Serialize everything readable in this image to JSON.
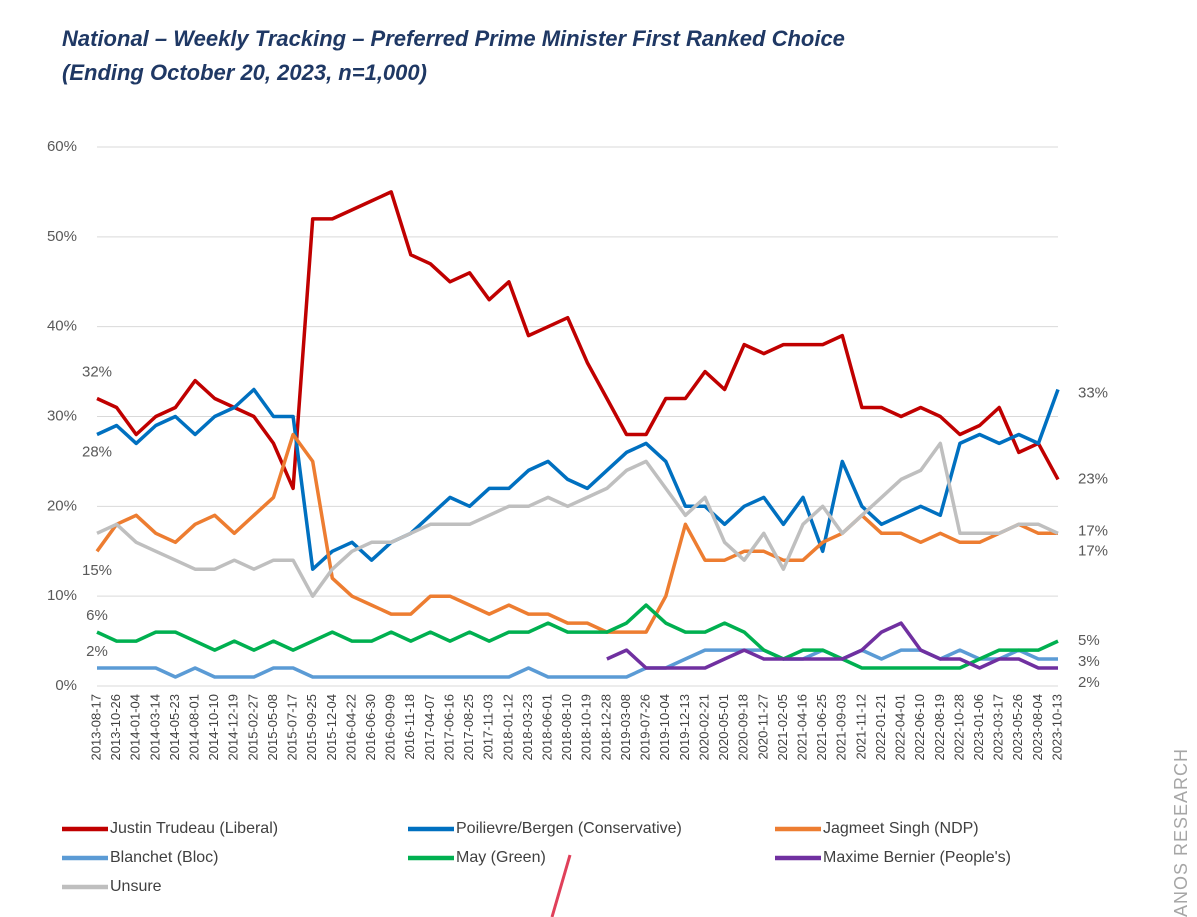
{
  "chart_data": {
    "type": "line",
    "title": "National – Weekly Tracking – Preferred Prime Minister First Ranked Choice",
    "subtitle": "(Ending October 20, 2023, n=1,000)",
    "watermark": "ANOS RESEARCH",
    "categories": [
      "2013-08-17",
      "2013-10-26",
      "2014-01-04",
      "2014-03-14",
      "2014-05-23",
      "2014-08-01",
      "2014-10-10",
      "2014-12-19",
      "2015-02-27",
      "2015-05-08",
      "2015-07-17",
      "2015-09-25",
      "2015-12-04",
      "2016-04-22",
      "2016-06-30",
      "2016-09-09",
      "2016-11-18",
      "2017-04-07",
      "2017-06-16",
      "2017-08-25",
      "2017-11-03",
      "2018-01-12",
      "2018-03-23",
      "2018-06-01",
      "2018-08-10",
      "2018-10-19",
      "2018-12-28",
      "2019-03-08",
      "2019-07-26",
      "2019-10-04",
      "2019-12-13",
      "2020-02-21",
      "2020-05-01",
      "2020-09-18",
      "2020-11-27",
      "2021-02-05",
      "2021-04-16",
      "2021-06-25",
      "2021-09-03",
      "2021-11-12",
      "2022-01-21",
      "2022-04-01",
      "2022-06-10",
      "2022-08-19",
      "2022-10-28",
      "2023-01-06",
      "2023-03-17",
      "2023-05-26",
      "2023-08-04",
      "2023-10-13"
    ],
    "ylim": [
      0,
      60
    ],
    "yticks": [
      {
        "value": 0,
        "label": "0%"
      },
      {
        "value": 10,
        "label": "10%"
      },
      {
        "value": 20,
        "label": "20%"
      },
      {
        "value": 30,
        "label": "30%"
      },
      {
        "value": 40,
        "label": "40%"
      },
      {
        "value": 50,
        "label": "50%"
      },
      {
        "value": 60,
        "label": "60%"
      }
    ],
    "grid": true,
    "series": [
      {
        "name": "Justin Trudeau (Liberal)",
        "color": "#c00000",
        "values": [
          32,
          31,
          28,
          30,
          31,
          34,
          32,
          31,
          30,
          27,
          22,
          52,
          52,
          53,
          54,
          55,
          48,
          47,
          45,
          46,
          43,
          45,
          39,
          40,
          41,
          36,
          32,
          28,
          28,
          32,
          32,
          35,
          33,
          38,
          37,
          38,
          38,
          38,
          39,
          31,
          31,
          30,
          31,
          30,
          28,
          29,
          31,
          26,
          27,
          23
        ],
        "value_labels": [
          "32%",
          null,
          null,
          null,
          null,
          null,
          null,
          null,
          null,
          null,
          null,
          null,
          null,
          null,
          null,
          null,
          null,
          null,
          null,
          null,
          null,
          null,
          null,
          null,
          null,
          null,
          null,
          null,
          null,
          null,
          null,
          null,
          null,
          null,
          null,
          null,
          null,
          null,
          null,
          null,
          null,
          null,
          null,
          null,
          null,
          null,
          null,
          null,
          null,
          "23%"
        ]
      },
      {
        "name": "Poilievre/Bergen (Conservative)",
        "color": "#0070c0",
        "values": [
          28,
          29,
          27,
          29,
          30,
          28,
          30,
          31,
          33,
          30,
          30,
          13,
          15,
          16,
          14,
          16,
          17,
          19,
          21,
          20,
          22,
          22,
          24,
          25,
          23,
          22,
          24,
          26,
          27,
          25,
          20,
          20,
          18,
          20,
          21,
          18,
          21,
          15,
          25,
          20,
          18,
          19,
          20,
          19,
          27,
          28,
          27,
          28,
          27,
          33
        ],
        "value_labels": [
          "28%",
          null,
          null,
          null,
          null,
          null,
          null,
          null,
          null,
          null,
          null,
          null,
          null,
          null,
          null,
          null,
          null,
          null,
          null,
          null,
          null,
          null,
          null,
          null,
          null,
          null,
          null,
          null,
          null,
          null,
          null,
          null,
          null,
          null,
          null,
          null,
          null,
          null,
          null,
          null,
          null,
          null,
          null,
          null,
          null,
          null,
          null,
          null,
          null,
          "33%"
        ]
      },
      {
        "name": "Jagmeet Singh (NDP)",
        "color": "#ed7d31",
        "values": [
          15,
          18,
          19,
          17,
          16,
          18,
          19,
          17,
          19,
          21,
          28,
          25,
          12,
          10,
          9,
          8,
          8,
          10,
          10,
          9,
          8,
          9,
          8,
          8,
          7,
          7,
          6,
          6,
          6,
          10,
          18,
          14,
          14,
          15,
          15,
          14,
          14,
          16,
          17,
          19,
          17,
          17,
          16,
          17,
          16,
          16,
          17,
          18,
          17,
          17
        ],
        "value_labels": [
          "15%",
          null,
          null,
          null,
          null,
          null,
          null,
          null,
          null,
          null,
          null,
          null,
          null,
          null,
          null,
          null,
          null,
          null,
          null,
          null,
          null,
          null,
          null,
          null,
          null,
          null,
          null,
          null,
          null,
          null,
          null,
          null,
          null,
          null,
          null,
          null,
          null,
          null,
          null,
          null,
          null,
          null,
          null,
          null,
          null,
          null,
          null,
          null,
          null,
          "17%"
        ]
      },
      {
        "name": "Blanchet (Bloc)",
        "color": "#5b9bd5",
        "values": [
          2,
          2,
          2,
          2,
          1,
          2,
          1,
          1,
          1,
          2,
          2,
          1,
          1,
          1,
          1,
          1,
          1,
          1,
          1,
          1,
          1,
          1,
          2,
          1,
          1,
          1,
          1,
          1,
          2,
          2,
          3,
          4,
          4,
          4,
          4,
          3,
          3,
          4,
          3,
          4,
          3,
          4,
          4,
          3,
          4,
          3,
          3,
          4,
          3,
          3
        ],
        "value_labels": [
          "2%",
          null,
          null,
          null,
          null,
          null,
          null,
          null,
          null,
          null,
          null,
          null,
          null,
          null,
          null,
          null,
          null,
          null,
          null,
          null,
          null,
          null,
          null,
          null,
          null,
          null,
          null,
          null,
          null,
          null,
          null,
          null,
          null,
          null,
          null,
          null,
          null,
          null,
          null,
          null,
          null,
          null,
          null,
          null,
          null,
          null,
          null,
          null,
          null,
          "3%"
        ]
      },
      {
        "name": "May (Green)",
        "color": "#00b050",
        "values": [
          6,
          5,
          5,
          6,
          6,
          5,
          4,
          5,
          4,
          5,
          4,
          5,
          6,
          5,
          5,
          6,
          5,
          6,
          5,
          6,
          5,
          6,
          6,
          7,
          6,
          6,
          6,
          7,
          9,
          7,
          6,
          6,
          7,
          6,
          4,
          3,
          4,
          4,
          3,
          2,
          2,
          2,
          2,
          2,
          2,
          3,
          4,
          4,
          4,
          5
        ],
        "value_labels": [
          "6%",
          null,
          null,
          null,
          null,
          null,
          null,
          null,
          null,
          null,
          null,
          null,
          null,
          null,
          null,
          null,
          null,
          null,
          null,
          null,
          null,
          null,
          null,
          null,
          null,
          null,
          null,
          null,
          null,
          null,
          null,
          null,
          null,
          null,
          null,
          null,
          null,
          null,
          null,
          null,
          null,
          null,
          null,
          null,
          null,
          null,
          null,
          null,
          null,
          "5%"
        ]
      },
      {
        "name": "Maxime Bernier (People's)",
        "color": "#7030a0",
        "values": [
          null,
          null,
          null,
          null,
          null,
          null,
          null,
          null,
          null,
          null,
          null,
          null,
          null,
          null,
          null,
          null,
          null,
          null,
          null,
          null,
          null,
          null,
          null,
          null,
          null,
          null,
          3,
          4,
          2,
          2,
          2,
          2,
          3,
          4,
          3,
          3,
          3,
          3,
          3,
          4,
          6,
          7,
          4,
          3,
          3,
          2,
          3,
          3,
          2,
          2
        ],
        "value_labels": [
          null,
          null,
          null,
          null,
          null,
          null,
          null,
          null,
          null,
          null,
          null,
          null,
          null,
          null,
          null,
          null,
          null,
          null,
          null,
          null,
          null,
          null,
          null,
          null,
          null,
          null,
          null,
          null,
          null,
          null,
          null,
          null,
          null,
          null,
          null,
          null,
          null,
          null,
          null,
          null,
          null,
          null,
          null,
          null,
          null,
          null,
          null,
          null,
          null,
          "2%"
        ]
      },
      {
        "name": "Unsure",
        "color": "#bfbfbf",
        "values": [
          17,
          18,
          16,
          15,
          14,
          13,
          13,
          14,
          13,
          14,
          14,
          10,
          13,
          15,
          16,
          16,
          17,
          18,
          18,
          18,
          19,
          20,
          20,
          21,
          20,
          21,
          22,
          24,
          25,
          22,
          19,
          21,
          16,
          14,
          17,
          13,
          18,
          20,
          17,
          19,
          21,
          23,
          24,
          27,
          17,
          17,
          17,
          18,
          18,
          17
        ],
        "value_labels": [
          null,
          null,
          null,
          null,
          null,
          null,
          null,
          null,
          null,
          null,
          null,
          null,
          null,
          null,
          null,
          null,
          null,
          null,
          null,
          null,
          null,
          null,
          null,
          null,
          null,
          null,
          null,
          null,
          null,
          null,
          null,
          null,
          null,
          null,
          null,
          null,
          null,
          null,
          null,
          null,
          null,
          null,
          null,
          null,
          null,
          null,
          null,
          null,
          null,
          "17%"
        ]
      }
    ]
  }
}
